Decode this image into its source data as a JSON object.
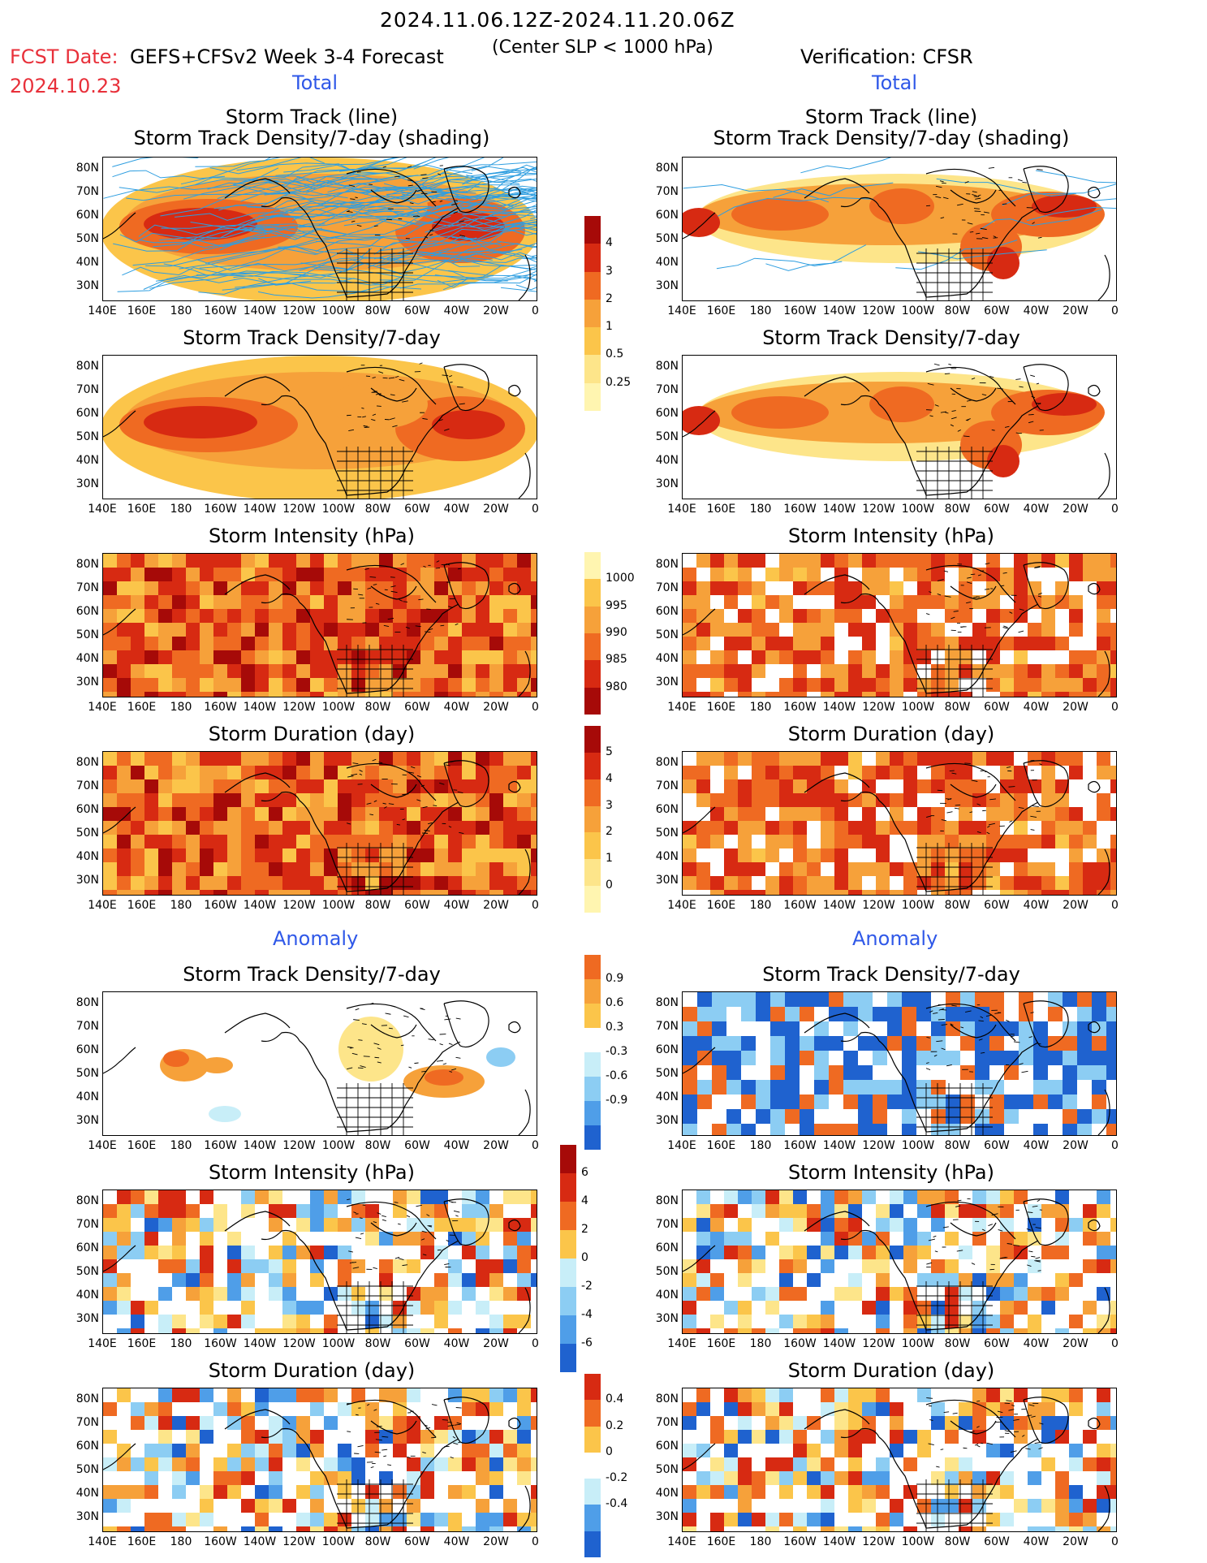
{
  "header": {
    "date_range": "2024.11.06.12Z-2024.11.20.06Z",
    "fcst_date_label": "FCST Date:",
    "fcst_date": "2024.10.23",
    "model": "GEFS+CFSv2 Week 3-4 Forecast",
    "criterion": "(Center SLP < 1000 hPa)",
    "verification": "Verification: CFSR"
  },
  "sections": {
    "total": "Total",
    "anomaly": "Anomaly"
  },
  "panel_titles": {
    "track_line": "Storm Track (line)",
    "track_density_shading": "Storm Track Density/7-day (shading)",
    "track_density": "Storm Track Density/7-day",
    "intensity": "Storm Intensity (hPa)",
    "duration": "Storm Duration (day)"
  },
  "axes": {
    "lat_ticks": [
      "80N",
      "70N",
      "60N",
      "50N",
      "40N",
      "30N"
    ],
    "lon_ticks": [
      "140E",
      "160E",
      "180",
      "160W",
      "140W",
      "120W",
      "100W",
      "80W",
      "60W",
      "40W",
      "20W",
      "0"
    ]
  },
  "colorbars": {
    "density": [
      "4",
      "3",
      "2",
      "1",
      "0.5",
      "0.25"
    ],
    "intensity": [
      "1000",
      "995",
      "990",
      "985",
      "980"
    ],
    "duration": [
      "5",
      "4",
      "3",
      "2",
      "1",
      "0"
    ],
    "density_anom": [
      "0.9",
      "0.6",
      "0.3",
      "-0.3",
      "-0.6",
      "-0.9"
    ],
    "intensity_anom": [
      "6",
      "4",
      "2",
      "0",
      "-2",
      "-4",
      "-6"
    ],
    "duration_anom": [
      "0.4",
      "0.2",
      "0",
      "-0.2",
      "-0.4"
    ]
  },
  "colors": {
    "warm_scale": [
      "#fff5b0",
      "#fde58a",
      "#fbc54a",
      "#f6a13a",
      "#ef6a22",
      "#d72a12",
      "#a60a08"
    ],
    "cool_scale": [
      "#c8eef8",
      "#8ccdf3",
      "#4f9ee8",
      "#1f62cf"
    ],
    "track_line": "#2e9ee0",
    "title_red": "#e8303a",
    "title_blue": "#2f58e8"
  }
}
